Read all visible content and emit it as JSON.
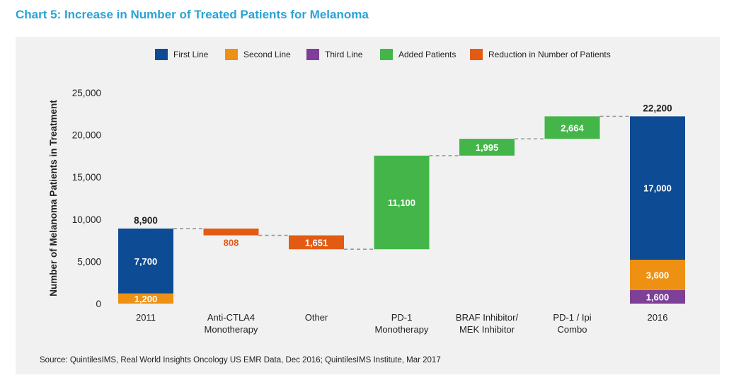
{
  "title": "Chart 5: Increase in Number of Treated Patients for Melanoma",
  "source": "Source: QuintilesIMS, Real World Insights Oncology US EMR Data, Dec 2016; QuintilesIMS Institute, Mar 2017",
  "chart_data": {
    "type": "bar",
    "subtype": "waterfall",
    "ylabel": "Number of Melanoma Patients in Treatment",
    "ylim": [
      0,
      25000
    ],
    "yticks": [
      "0",
      "5,000",
      "10,000",
      "15,000",
      "20,000",
      "25,000"
    ],
    "ytick_values": [
      0,
      5000,
      10000,
      15000,
      20000,
      25000
    ],
    "grid": false,
    "legend_position": "top-center",
    "legend": [
      {
        "name": "First Line",
        "color": "#0d4b94"
      },
      {
        "name": "Second Line",
        "color": "#ee9112"
      },
      {
        "name": "Third Line",
        "color": "#7d3f98"
      },
      {
        "name": "Added Patients",
        "color": "#44b649"
      },
      {
        "name": "Reduction in Number of Patients",
        "color": "#e35b13"
      }
    ],
    "categories": [
      [
        "2011"
      ],
      [
        "Anti-CTLA4",
        "Monotherapy"
      ],
      [
        "Other"
      ],
      [
        "PD-1",
        "Monotherapy"
      ],
      [
        "BRAF Inhibitor/",
        "MEK Inhibitor"
      ],
      [
        "PD-1 / Ipi",
        "Combo"
      ],
      [
        "2016"
      ]
    ],
    "bars": [
      {
        "segments": [
          {
            "series": "Second Line",
            "base": 0,
            "value": 1200,
            "label": "1,200",
            "label_color": "#ffffff"
          },
          {
            "series": "First Line",
            "base": 1200,
            "value": 7700,
            "label": "7,700",
            "label_color": "#ffffff"
          }
        ],
        "total": "8,900"
      },
      {
        "segments": [
          {
            "series": "Reduction in Number of Patients",
            "base": 8092,
            "value": 808,
            "label": "808",
            "label_color": "#e35b13",
            "label_below": true
          }
        ],
        "total": ""
      },
      {
        "segments": [
          {
            "series": "Reduction in Number of Patients",
            "base": 6441,
            "value": 1651,
            "label": "1,651",
            "label_color": "#ffffff"
          }
        ],
        "total": ""
      },
      {
        "segments": [
          {
            "series": "Added Patients",
            "base": 6441,
            "value": 11100,
            "label": "11,100",
            "label_color": "#ffffff"
          }
        ],
        "total": ""
      },
      {
        "segments": [
          {
            "series": "Added Patients",
            "base": 17541,
            "value": 1995,
            "label": "1,995",
            "label_color": "#ffffff"
          }
        ],
        "total": ""
      },
      {
        "segments": [
          {
            "series": "Added Patients",
            "base": 19536,
            "value": 2664,
            "label": "2,664",
            "label_color": "#ffffff"
          }
        ],
        "total": ""
      },
      {
        "segments": [
          {
            "series": "Third Line",
            "base": 0,
            "value": 1600,
            "label": "1,600",
            "label_color": "#ffffff"
          },
          {
            "series": "Second Line",
            "base": 1600,
            "value": 3600,
            "label": "3,600",
            "label_color": "#ffffff"
          },
          {
            "series": "First Line",
            "base": 5200,
            "value": 17000,
            "label": "17,000",
            "label_color": "#ffffff"
          }
        ],
        "total": "22,200"
      }
    ],
    "connector_levels": [
      8900,
      8092,
      6441,
      17541,
      19536,
      22200
    ]
  }
}
